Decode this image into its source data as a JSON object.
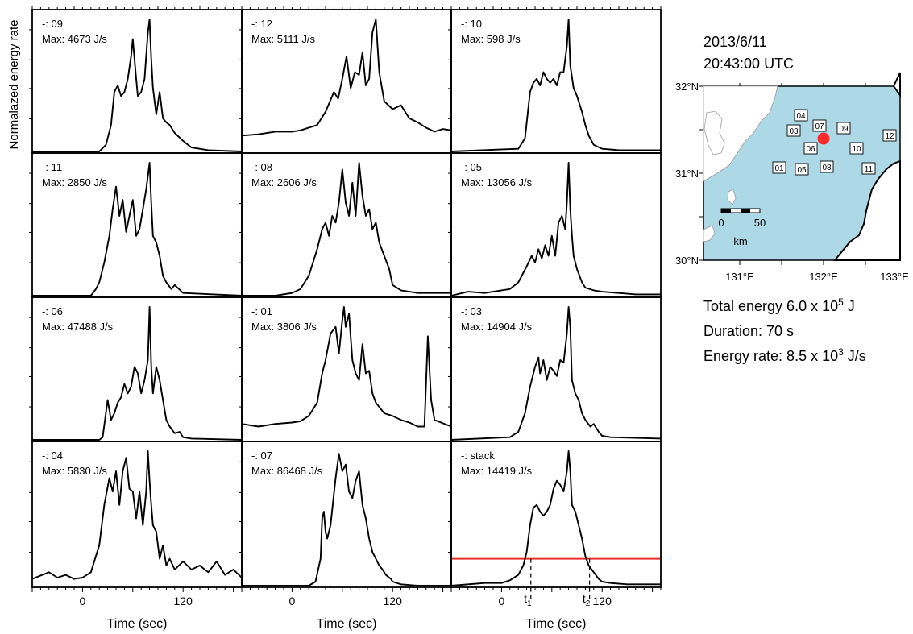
{
  "y_label": "Normalazed energy rate",
  "x_label": "Time (sec)",
  "x_ticks": [
    0,
    120
  ],
  "map": {
    "date": "2013/6/11",
    "time": "20:43:00 UTC",
    "lat_labels": [
      "32°N",
      "31°N",
      "30°N"
    ],
    "lon_labels": [
      "131°E",
      "132°E",
      "133°E"
    ],
    "scale_labels": [
      "0",
      "50"
    ],
    "scale_unit": "km",
    "stations": [
      "04",
      "03",
      "07",
      "09",
      "12",
      "06",
      "10",
      "01",
      "05",
      "08",
      "11"
    ],
    "ocean_color": "#add8e6",
    "land_color": "#ffffff",
    "event_color": "#ff2a2a"
  },
  "summary": {
    "energy": "Total energy 6.0 x 10",
    "energy_exp": "5",
    "energy_unit": " J",
    "duration": "Duration: 70 s",
    "rate": "Energy rate: 8.5 x 10",
    "rate_exp": "3",
    "rate_unit": " J/s"
  },
  "markers": {
    "t1": "t",
    "t1_sub": "1",
    "t2": "t",
    "t2_sub": "2"
  },
  "chart_data": [
    {
      "type": "line",
      "id": "09",
      "label": "-: 09",
      "max": "Max: 4673 J/s",
      "xlim": [
        -60,
        190
      ],
      "ylim": [
        0,
        1
      ],
      "x": [
        -60,
        20,
        28,
        34,
        38,
        42,
        46,
        50,
        54,
        58,
        60,
        62,
        64,
        66,
        70,
        74,
        78,
        80,
        82,
        84,
        88,
        92,
        96,
        100,
        104,
        110,
        120,
        130,
        150,
        190
      ],
      "y": [
        0.0,
        0.0,
        0.05,
        0.2,
        0.45,
        0.5,
        0.42,
        0.45,
        0.55,
        0.72,
        0.85,
        0.7,
        0.55,
        0.42,
        0.45,
        0.55,
        0.9,
        1.0,
        0.7,
        0.48,
        0.28,
        0.45,
        0.25,
        0.22,
        0.2,
        0.14,
        0.08,
        0.03,
        0.01,
        0.0
      ]
    },
    {
      "type": "line",
      "id": "12",
      "label": "-: 12",
      "max": "Max: 5111 J/s",
      "xlim": [
        -60,
        190
      ],
      "ylim": [
        0,
        1
      ],
      "x": [
        -60,
        -40,
        -20,
        0,
        10,
        20,
        30,
        40,
        50,
        55,
        60,
        65,
        70,
        75,
        80,
        84,
        88,
        92,
        96,
        100,
        104,
        110,
        120,
        130,
        140,
        150,
        160,
        170,
        180,
        190
      ],
      "y": [
        0.12,
        0.13,
        0.15,
        0.15,
        0.16,
        0.18,
        0.2,
        0.3,
        0.45,
        0.4,
        0.55,
        0.72,
        0.48,
        0.6,
        0.58,
        0.75,
        0.5,
        0.55,
        0.9,
        1.0,
        0.6,
        0.38,
        0.32,
        0.35,
        0.25,
        0.22,
        0.18,
        0.15,
        0.17,
        0.16
      ]
    },
    {
      "type": "line",
      "id": "10",
      "label": "-: 10",
      "max": "Max: 598 J/s",
      "xlim": [
        -60,
        190
      ],
      "ylim": [
        0,
        1
      ],
      "x": [
        -60,
        20,
        28,
        34,
        38,
        42,
        46,
        50,
        54,
        58,
        62,
        66,
        70,
        74,
        78,
        80,
        82,
        86,
        90,
        96,
        100,
        104,
        110,
        120,
        140,
        190
      ],
      "y": [
        0.0,
        0.02,
        0.1,
        0.45,
        0.52,
        0.55,
        0.5,
        0.6,
        0.55,
        0.52,
        0.55,
        0.5,
        0.6,
        0.6,
        0.8,
        1.0,
        0.65,
        0.48,
        0.42,
        0.3,
        0.2,
        0.12,
        0.05,
        0.02,
        0.01,
        0.01
      ]
    },
    {
      "type": "line",
      "id": "11",
      "label": "-: 11",
      "max": "Max: 2850 J/s",
      "xlim": [
        -60,
        190
      ],
      "ylim": [
        0,
        1
      ],
      "x": [
        -60,
        10,
        16,
        20,
        26,
        32,
        36,
        40,
        44,
        48,
        52,
        56,
        60,
        64,
        68,
        72,
        76,
        80,
        82,
        84,
        88,
        92,
        96,
        100,
        106,
        110,
        120,
        190
      ],
      "y": [
        0.0,
        0.0,
        0.05,
        0.1,
        0.25,
        0.45,
        0.65,
        0.82,
        0.6,
        0.72,
        0.48,
        0.6,
        0.72,
        0.45,
        0.5,
        0.65,
        0.8,
        1.0,
        0.7,
        0.45,
        0.4,
        0.3,
        0.15,
        0.1,
        0.05,
        0.08,
        0.02,
        0.0
      ]
    },
    {
      "type": "line",
      "id": "08",
      "label": "-: 08",
      "max": "Max: 2606 J/s",
      "xlim": [
        -60,
        190
      ],
      "ylim": [
        0,
        1
      ],
      "x": [
        -60,
        -20,
        0,
        10,
        20,
        30,
        36,
        40,
        44,
        48,
        52,
        56,
        60,
        64,
        68,
        72,
        76,
        80,
        84,
        88,
        92,
        96,
        100,
        104,
        110,
        116,
        120,
        130,
        150,
        190
      ],
      "y": [
        0.0,
        0.0,
        0.02,
        0.05,
        0.15,
        0.35,
        0.5,
        0.55,
        0.45,
        0.6,
        0.55,
        0.7,
        0.95,
        0.7,
        0.6,
        0.85,
        0.6,
        1.0,
        0.75,
        0.6,
        0.65,
        0.5,
        0.55,
        0.4,
        0.3,
        0.2,
        0.08,
        0.04,
        0.02,
        0.02
      ]
    },
    {
      "type": "line",
      "id": "05",
      "label": "-: 05",
      "max": "Max: 13056 J/s",
      "xlim": [
        -60,
        190
      ],
      "ylim": [
        0,
        1
      ],
      "x": [
        -60,
        -40,
        -20,
        0,
        10,
        20,
        30,
        36,
        40,
        44,
        48,
        52,
        56,
        60,
        64,
        68,
        72,
        76,
        78,
        80,
        82,
        84,
        86,
        90,
        96,
        100,
        110,
        120,
        140,
        160,
        190
      ],
      "y": [
        0.0,
        0.03,
        0.02,
        0.04,
        0.05,
        0.1,
        0.22,
        0.3,
        0.25,
        0.35,
        0.28,
        0.38,
        0.3,
        0.45,
        0.3,
        0.55,
        0.6,
        0.5,
        0.7,
        1.0,
        0.65,
        0.45,
        0.3,
        0.2,
        0.1,
        0.06,
        0.04,
        0.03,
        0.02,
        0.01,
        0.01
      ]
    },
    {
      "type": "line",
      "id": "06",
      "label": "-: 06",
      "max": "Max: 47488 J/s",
      "xlim": [
        -60,
        190
      ],
      "ylim": [
        0,
        1
      ],
      "x": [
        -60,
        20,
        24,
        30,
        34,
        38,
        42,
        46,
        50,
        54,
        58,
        62,
        66,
        70,
        74,
        78,
        80,
        82,
        84,
        88,
        92,
        96,
        100,
        104,
        110,
        116,
        120,
        130,
        190
      ],
      "y": [
        0.0,
        0.0,
        0.02,
        0.3,
        0.15,
        0.2,
        0.28,
        0.32,
        0.42,
        0.35,
        0.4,
        0.55,
        0.5,
        0.35,
        0.45,
        0.6,
        1.0,
        0.55,
        0.35,
        0.55,
        0.45,
        0.3,
        0.15,
        0.1,
        0.05,
        0.06,
        0.02,
        0.01,
        0.0
      ]
    },
    {
      "type": "line",
      "id": "01",
      "label": "-: 01",
      "max": "Max: 3806 J/s",
      "xlim": [
        -60,
        190
      ],
      "ylim": [
        0,
        1
      ],
      "x": [
        -60,
        -40,
        -20,
        0,
        10,
        20,
        30,
        36,
        40,
        46,
        52,
        56,
        60,
        62,
        64,
        68,
        72,
        76,
        80,
        84,
        88,
        92,
        96,
        100,
        110,
        120,
        130,
        140,
        150,
        158,
        162,
        166,
        170,
        190
      ],
      "y": [
        0.12,
        0.1,
        0.12,
        0.13,
        0.14,
        0.18,
        0.28,
        0.5,
        0.6,
        0.8,
        0.85,
        0.65,
        0.9,
        1.0,
        0.85,
        0.95,
        0.6,
        0.5,
        0.45,
        0.72,
        0.5,
        0.52,
        0.35,
        0.28,
        0.2,
        0.18,
        0.15,
        0.13,
        0.1,
        0.1,
        0.78,
        0.3,
        0.15,
        0.1
      ]
    },
    {
      "type": "line",
      "id": "03",
      "label": "-: 03",
      "max": "Max: 14904 J/s",
      "xlim": [
        -60,
        190
      ],
      "ylim": [
        0,
        1
      ],
      "x": [
        -60,
        10,
        20,
        28,
        34,
        40,
        44,
        46,
        50,
        54,
        58,
        62,
        66,
        70,
        74,
        78,
        80,
        82,
        84,
        88,
        92,
        96,
        100,
        106,
        110,
        116,
        120,
        130,
        190
      ],
      "y": [
        0.0,
        0.02,
        0.06,
        0.2,
        0.4,
        0.55,
        0.62,
        0.5,
        0.6,
        0.45,
        0.55,
        0.52,
        0.48,
        0.6,
        0.58,
        0.8,
        1.0,
        0.85,
        0.45,
        0.35,
        0.3,
        0.2,
        0.15,
        0.1,
        0.12,
        0.06,
        0.03,
        0.02,
        0.01
      ]
    },
    {
      "type": "line",
      "id": "04",
      "label": "-: 04",
      "max": "Max: 5830 J/s",
      "xlim": [
        -60,
        190
      ],
      "ylim": [
        0,
        1
      ],
      "x": [
        -60,
        -40,
        -30,
        -20,
        -10,
        0,
        10,
        20,
        26,
        32,
        36,
        40,
        44,
        48,
        52,
        56,
        60,
        64,
        68,
        72,
        76,
        78,
        80,
        82,
        84,
        88,
        92,
        96,
        100,
        104,
        110,
        120,
        130,
        140,
        150,
        160,
        170,
        180,
        190
      ],
      "y": [
        0.05,
        0.1,
        0.06,
        0.08,
        0.05,
        0.06,
        0.1,
        0.3,
        0.6,
        0.8,
        0.7,
        0.85,
        0.6,
        0.85,
        0.95,
        0.72,
        0.7,
        0.5,
        0.7,
        0.45,
        0.7,
        1.0,
        0.78,
        0.6,
        0.45,
        0.4,
        0.2,
        0.3,
        0.15,
        0.2,
        0.12,
        0.18,
        0.12,
        0.15,
        0.1,
        0.18,
        0.08,
        0.12,
        0.06
      ]
    },
    {
      "type": "line",
      "id": "07",
      "label": "-: 07",
      "max": "Max: 86468 J/s",
      "xlim": [
        -60,
        190
      ],
      "ylim": [
        0,
        1
      ],
      "x": [
        -60,
        20,
        28,
        34,
        36,
        38,
        40,
        42,
        46,
        52,
        56,
        60,
        64,
        68,
        72,
        76,
        80,
        84,
        88,
        92,
        96,
        100,
        104,
        108,
        112,
        118,
        120,
        130,
        150,
        190
      ],
      "y": [
        0.0,
        0.0,
        0.03,
        0.2,
        0.5,
        0.55,
        0.4,
        0.35,
        0.45,
        0.8,
        0.98,
        0.85,
        0.9,
        0.7,
        0.65,
        0.78,
        0.85,
        0.6,
        0.5,
        0.35,
        0.25,
        0.2,
        0.15,
        0.12,
        0.08,
        0.05,
        0.03,
        0.01,
        0.0,
        0.0
      ]
    },
    {
      "type": "line",
      "id": "stack",
      "label": "-: stack",
      "max": "Max: 14419 J/s",
      "xlim": [
        -60,
        190
      ],
      "ylim": [
        0,
        1
      ],
      "threshold": 0.2,
      "t1": 35,
      "t2": 105,
      "x": [
        -60,
        -20,
        0,
        10,
        20,
        26,
        30,
        34,
        38,
        42,
        46,
        50,
        54,
        58,
        62,
        66,
        70,
        74,
        78,
        80,
        82,
        84,
        88,
        92,
        96,
        100,
        104,
        110,
        116,
        120,
        130,
        150,
        190
      ],
      "y": [
        0.0,
        0.02,
        0.02,
        0.04,
        0.08,
        0.15,
        0.25,
        0.45,
        0.58,
        0.6,
        0.55,
        0.52,
        0.55,
        0.6,
        0.72,
        0.78,
        0.75,
        0.7,
        0.85,
        1.0,
        0.85,
        0.6,
        0.55,
        0.45,
        0.35,
        0.22,
        0.15,
        0.1,
        0.05,
        0.03,
        0.02,
        0.01,
        0.01
      ]
    }
  ]
}
